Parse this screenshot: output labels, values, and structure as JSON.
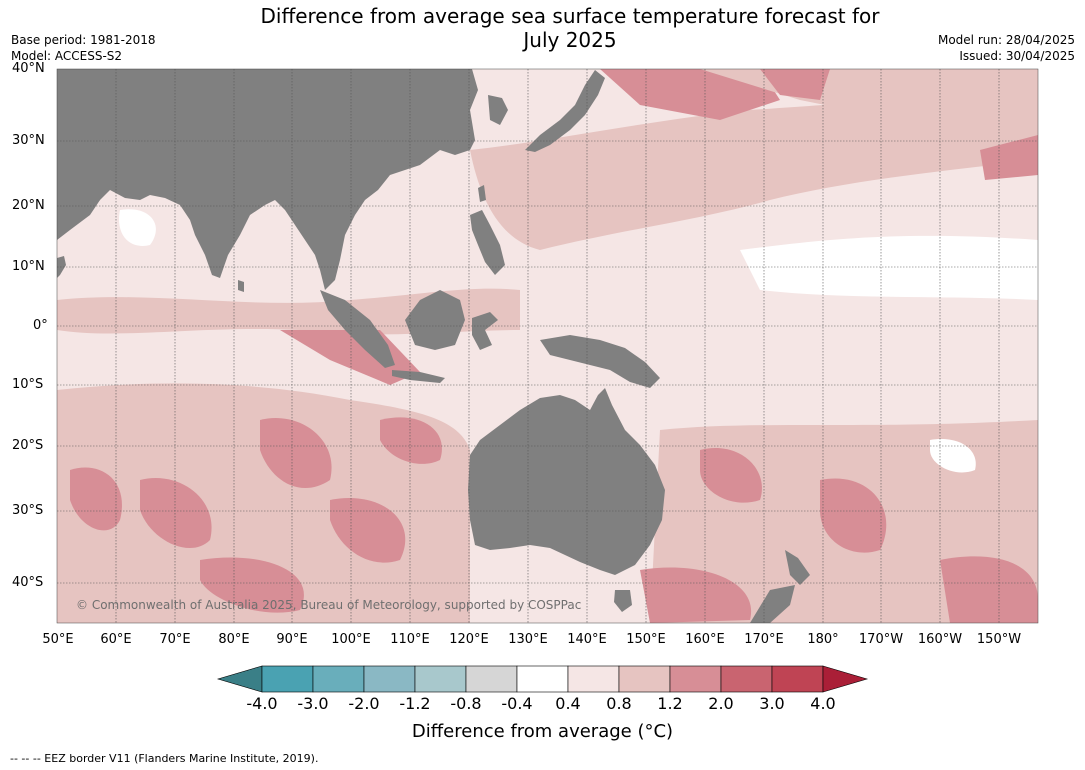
{
  "title_line1": "Difference from average sea surface temperature forecast for",
  "title_line2": "July 2025",
  "meta_left": [
    "Base period: 1981-2018",
    "Model: ACCESS-S2"
  ],
  "meta_right": [
    "Model run: 28/04/2025",
    "Issued: 30/04/2025"
  ],
  "lat_labels": [
    "40°N",
    "30°N",
    "20°N",
    "10°N",
    "0°",
    "10°S",
    "20°S",
    "30°S",
    "40°S"
  ],
  "lon_labels": [
    "50°E",
    "60°E",
    "70°E",
    "80°E",
    "90°E",
    "100°E",
    "110°E",
    "120°E",
    "130°E",
    "140°E",
    "150°E",
    "160°E",
    "170°E",
    "180°",
    "170°W",
    "160°W",
    "150°W"
  ],
  "copyright": "© Commonwealth of Australia 2025, Bureau of Meteorology, supported by COSPPac",
  "colorbar": {
    "ticks": [
      "-4.0",
      "-3.0",
      "-2.0",
      "-1.2",
      "-0.8",
      "-0.4",
      "0.4",
      "0.8",
      "1.2",
      "2.0",
      "3.0",
      "4.0"
    ],
    "colors": [
      "#3a7f87",
      "#4aa2b2",
      "#69aebb",
      "#8ab8c4",
      "#a8c8cc",
      "#d6d6d6",
      "#ffffff",
      "#f5e6e5",
      "#e6c4c1",
      "#d78e96",
      "#c96470",
      "#bf4454",
      "#aa1f37"
    ],
    "title": "Difference from average (°C)"
  },
  "land_color": "#808080",
  "footer": "--  --  -- EEZ border V11 (Flanders Marine Institute, 2019)."
}
